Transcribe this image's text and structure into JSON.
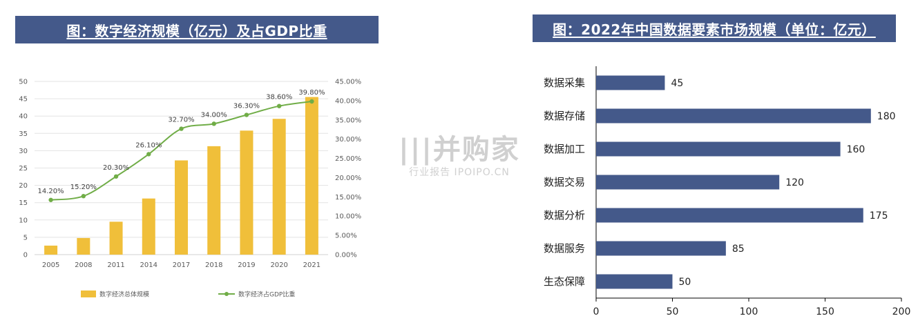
{
  "left_title": "图：数字经济规模（亿元）及占GDP比重",
  "right_title": "图：2022年中国数据要素市场规模（单位：亿元）",
  "watermark": {
    "main": "|||并购家",
    "sub": "行业报告 IPOIPO.CN"
  },
  "chart_data": [
    {
      "type": "bar",
      "categories": [
        "2005",
        "2008",
        "2011",
        "2014",
        "2017",
        "2018",
        "2019",
        "2020",
        "2021"
      ],
      "series": [
        {
          "name": "数字经济总体规模",
          "type": "bar",
          "axis": "left",
          "color": "#f0bf3a",
          "values": [
            2.6,
            4.8,
            9.5,
            16.2,
            27.2,
            31.3,
            35.8,
            39.2,
            45.5
          ]
        },
        {
          "name": "数字经济占GDP比重",
          "type": "line",
          "axis": "right",
          "color": "#70ad47",
          "values": [
            14.2,
            15.2,
            20.3,
            26.1,
            32.7,
            34.0,
            36.3,
            38.6,
            39.8
          ],
          "labels": [
            "14.20%",
            "15.20%",
            "20.30%",
            "26.10%",
            "32.70%",
            "34.00%",
            "36.30%",
            "38.60%",
            "39.80%"
          ]
        }
      ],
      "y_left": {
        "min": 0,
        "max": 50,
        "ticks": [
          "0",
          "5",
          "10",
          "15",
          "20",
          "25",
          "30",
          "35",
          "40",
          "45",
          "50"
        ]
      },
      "y_right": {
        "min": 0,
        "max": 45,
        "ticks": [
          "0.00%",
          "5.00%",
          "10.00%",
          "15.00%",
          "20.00%",
          "25.00%",
          "30.00%",
          "35.00%",
          "40.00%",
          "45.00%"
        ]
      },
      "grid": true,
      "legend": "bottom"
    },
    {
      "type": "bar",
      "orientation": "horizontal",
      "categories": [
        "数据采集",
        "数据存储",
        "数据加工",
        "数据交易",
        "数据分析",
        "数据服务",
        "生态保障"
      ],
      "values": [
        45,
        180,
        160,
        120,
        175,
        85,
        50
      ],
      "value_labels": [
        "45",
        "180",
        "160",
        "120",
        "175",
        "85",
        "50"
      ],
      "color": "#44598a",
      "xlim": [
        0,
        200
      ],
      "x_ticks": [
        "0",
        "50",
        "100",
        "150",
        "200"
      ],
      "grid": false
    }
  ]
}
